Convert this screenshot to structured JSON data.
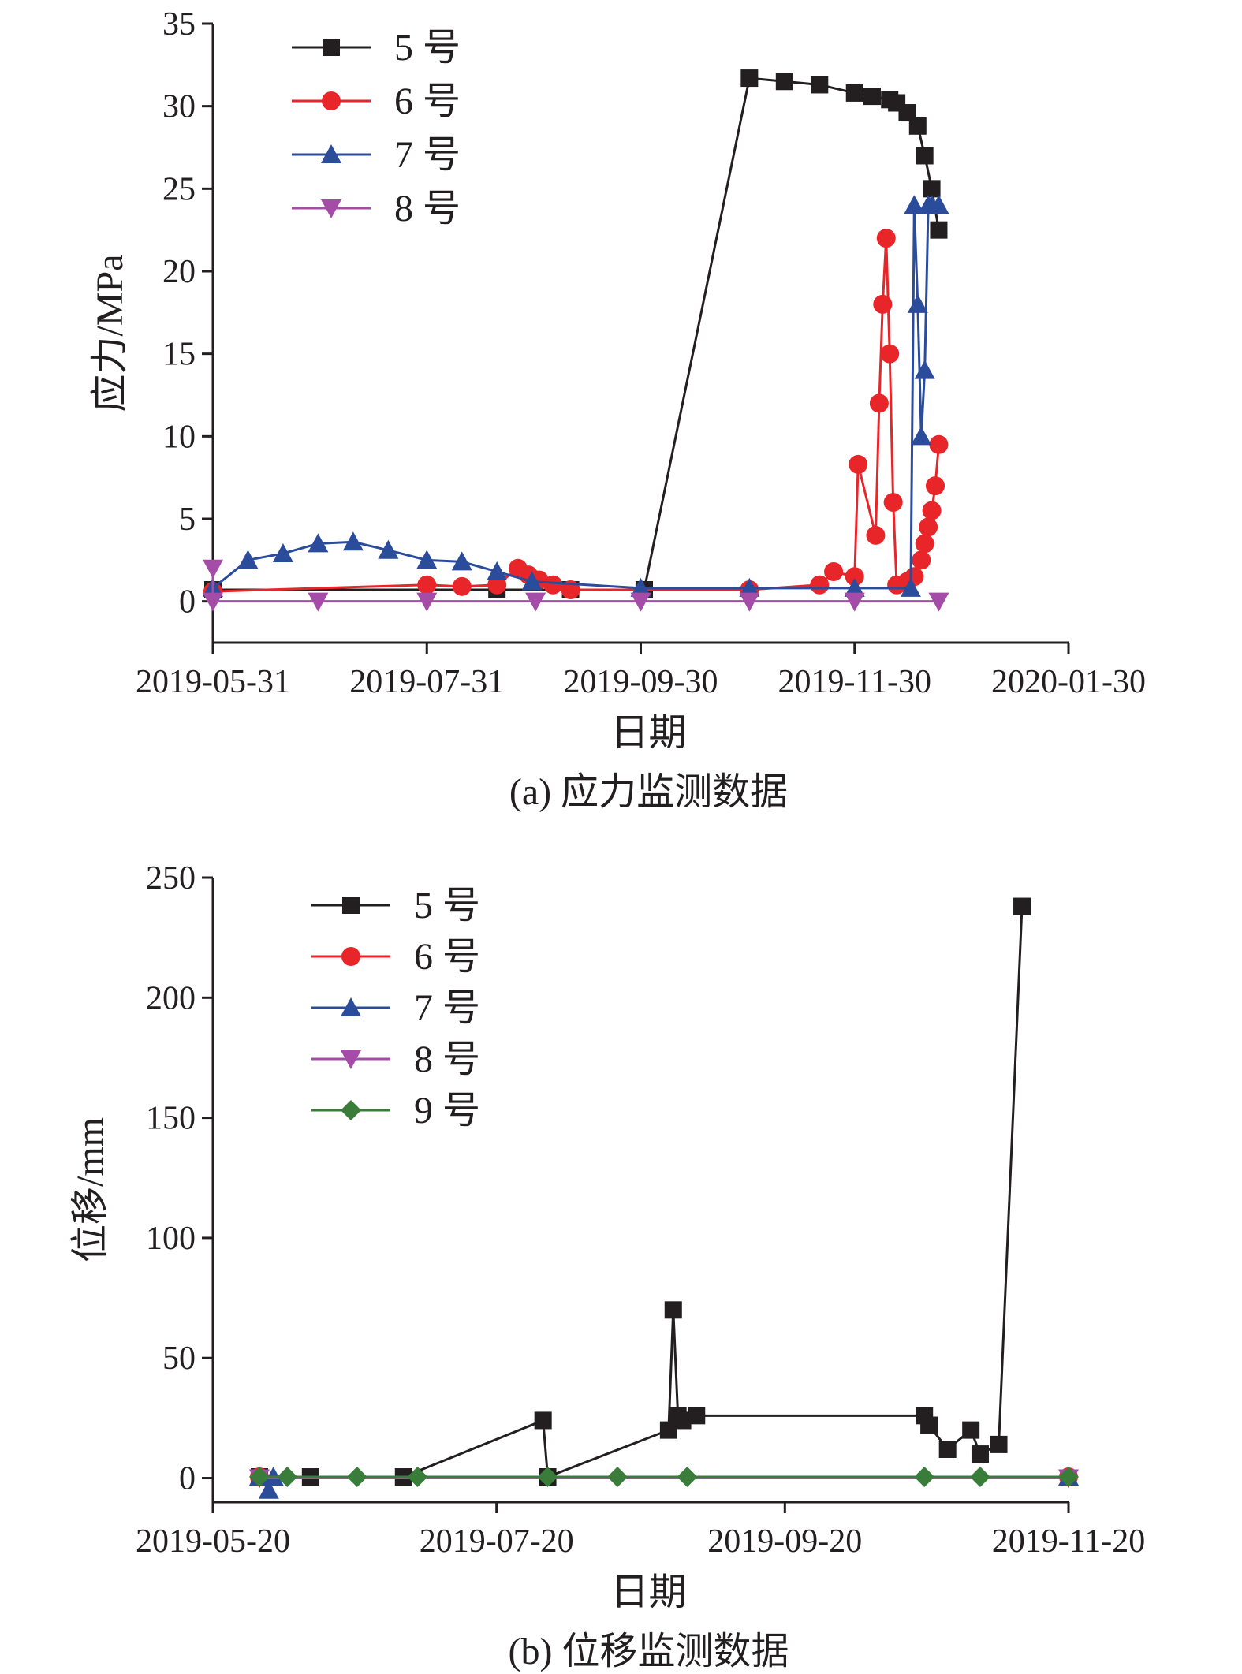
{
  "chart_data": [
    {
      "type": "line",
      "caption": "(a) 应力监测数据",
      "xlabel": "日期",
      "ylabel": "应力/MPa",
      "x_ticks": [
        "2019-05-31",
        "2019-07-31",
        "2019-09-30",
        "2019-11-30",
        "2020-01-30"
      ],
      "xlim": [
        "2019-05-31",
        "2020-01-30"
      ],
      "ylim": [
        -2.5,
        35
      ],
      "y_ticks": [
        0,
        5,
        10,
        15,
        20,
        25,
        30,
        35
      ],
      "legend_position": "top-left",
      "series": [
        {
          "name": "5 号",
          "color": "#231f20",
          "marker": "square",
          "x": [
            "2019-05-31",
            "2019-08-20",
            "2019-09-10",
            "2019-10-01",
            "2019-10-01",
            "2019-10-31",
            "2019-11-10",
            "2019-11-20",
            "2019-11-30",
            "2019-12-05",
            "2019-12-10",
            "2019-12-12",
            "2019-12-15",
            "2019-12-18",
            "2019-12-20",
            "2019-12-22",
            "2019-12-24"
          ],
          "y": [
            0.7,
            0.7,
            0.7,
            0.7,
            0.7,
            31.7,
            31.5,
            31.3,
            30.8,
            30.6,
            30.4,
            30.2,
            29.6,
            28.8,
            27.0,
            25.0,
            22.5
          ]
        },
        {
          "name": "6 号",
          "color": "#e8262a",
          "marker": "circle",
          "x": [
            "2019-05-31",
            "2019-07-31",
            "2019-08-10",
            "2019-08-20",
            "2019-08-26",
            "2019-08-29",
            "2019-09-01",
            "2019-09-05",
            "2019-09-10",
            "2019-10-31",
            "2019-11-20",
            "2019-11-24",
            "2019-11-30",
            "2019-12-01",
            "2019-12-06",
            "2019-12-07",
            "2019-12-08",
            "2019-12-09",
            "2019-12-10",
            "2019-12-11",
            "2019-12-12",
            "2019-12-15",
            "2019-12-17",
            "2019-12-19",
            "2019-12-20",
            "2019-12-21",
            "2019-12-22",
            "2019-12-23",
            "2019-12-24"
          ],
          "y": [
            0.6,
            1.0,
            0.9,
            1.0,
            2.0,
            1.6,
            1.3,
            1.0,
            0.7,
            0.7,
            1.0,
            1.8,
            1.5,
            8.3,
            4.0,
            12.0,
            18.0,
            22.0,
            15.0,
            6.0,
            1.0,
            1.2,
            1.5,
            2.5,
            3.5,
            4.5,
            5.5,
            7.0,
            9.5
          ]
        },
        {
          "name": "7 号",
          "color": "#2b4c9b",
          "marker": "triangle-up",
          "x": [
            "2019-05-31",
            "2019-06-10",
            "2019-06-20",
            "2019-06-30",
            "2019-07-10",
            "2019-07-20",
            "2019-07-31",
            "2019-08-10",
            "2019-08-20",
            "2019-08-30",
            "2019-09-30",
            "2019-10-31",
            "2019-11-30",
            "2019-12-16",
            "2019-12-17",
            "2019-12-18",
            "2019-12-19",
            "2019-12-20",
            "2019-12-21",
            "2019-12-22",
            "2019-12-24"
          ],
          "y": [
            0.8,
            2.5,
            2.9,
            3.5,
            3.6,
            3.1,
            2.5,
            2.4,
            1.8,
            1.2,
            0.8,
            0.8,
            0.8,
            0.8,
            24.0,
            18.0,
            10.0,
            14.0,
            24.0,
            24.0,
            24.0
          ]
        },
        {
          "name": "8 号",
          "color": "#a54ca8",
          "marker": "triangle-down",
          "x": [
            "2019-05-31",
            "2019-05-31",
            "2019-06-30",
            "2019-07-31",
            "2019-08-31",
            "2019-09-30",
            "2019-10-31",
            "2019-11-30",
            "2019-12-24"
          ],
          "y": [
            2.0,
            0.0,
            0.0,
            0.0,
            0.0,
            0.0,
            0.0,
            0.0,
            0.0
          ]
        }
      ]
    },
    {
      "type": "line",
      "caption": "(b) 位移监测数据",
      "xlabel": "日期",
      "ylabel": "位移/mm",
      "x_ticks": [
        "2019-05-20",
        "2019-07-20",
        "2019-09-20",
        "2019-11-20"
      ],
      "xlim": [
        "2019-05-20",
        "2019-11-20"
      ],
      "ylim": [
        -10,
        250
      ],
      "y_ticks": [
        0,
        50,
        100,
        150,
        200,
        250
      ],
      "legend_position": "top-left",
      "series": [
        {
          "name": "5 号",
          "color": "#231f20",
          "marker": "square",
          "x": [
            "2019-05-30",
            "2019-06-10",
            "2019-06-30",
            "2019-07-30",
            "2019-07-31",
            "2019-08-26",
            "2019-08-27",
            "2019-08-28",
            "2019-08-29",
            "2019-09-01",
            "2019-10-20",
            "2019-10-21",
            "2019-10-25",
            "2019-10-30",
            "2019-11-01",
            "2019-11-05",
            "2019-11-10"
          ],
          "y": [
            0.5,
            0.5,
            0.5,
            24.0,
            0.5,
            20.0,
            70.0,
            26.0,
            24.0,
            26.0,
            26.0,
            22.0,
            12.0,
            20.0,
            10.0,
            14.0,
            238.0
          ]
        },
        {
          "name": "6 号",
          "color": "#e8262a",
          "marker": "circle",
          "x": [
            "2019-05-30",
            "2019-11-20"
          ],
          "y": [
            0.5,
            0.5
          ]
        },
        {
          "name": "7 号",
          "color": "#2b4c9b",
          "marker": "triangle-up",
          "x": [
            "2019-05-30",
            "2019-06-01",
            "2019-06-02",
            "2019-11-20"
          ],
          "y": [
            0.5,
            -5.0,
            0.5,
            0.5
          ]
        },
        {
          "name": "8 号",
          "color": "#a54ca8",
          "marker": "triangle-down",
          "x": [
            "2019-05-30",
            "2019-11-20"
          ],
          "y": [
            0.0,
            0.0
          ]
        },
        {
          "name": "9 号",
          "color": "#3a7d3a",
          "marker": "diamond",
          "x": [
            "2019-05-30",
            "2019-06-05",
            "2019-06-20",
            "2019-07-03",
            "2019-07-31",
            "2019-08-15",
            "2019-08-30",
            "2019-10-20",
            "2019-11-01",
            "2019-11-20"
          ],
          "y": [
            0.5,
            0.5,
            0.5,
            0.5,
            0.5,
            0.5,
            0.5,
            0.5,
            0.5,
            0.5
          ]
        }
      ]
    }
  ]
}
